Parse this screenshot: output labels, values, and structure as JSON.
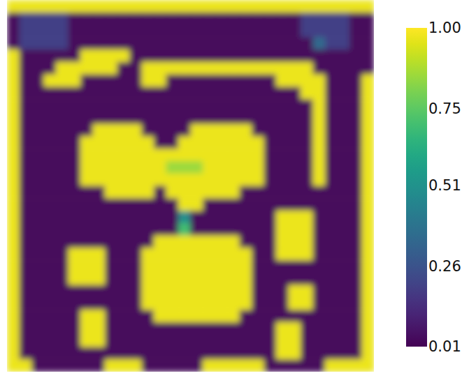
{
  "chart_data": {
    "type": "heatmap",
    "tick_labels": false,
    "zlim": [
      0.01,
      1.0
    ],
    "zticks": [
      0.01,
      0.26,
      0.51,
      0.75,
      {
        "value": 1.0,
        "label": "1.00"
      }
    ],
    "cells": [
      [
        0.97,
        0.97,
        0.97,
        0.97,
        0.97,
        0.97,
        0.97,
        0.97,
        0.97,
        0.97,
        0.97,
        0.97,
        0.97,
        0.97,
        0.97,
        0.97,
        0.97,
        0.97,
        0.97,
        0.97,
        0.97,
        0.97,
        0.97,
        0.97,
        0.97,
        0.97,
        0.97,
        0.97,
        0.97,
        0.97
      ],
      [
        0.03,
        0.2,
        0.2,
        0.2,
        0.2,
        0.03,
        0.03,
        0.03,
        0.03,
        0.03,
        0.03,
        0.03,
        0.03,
        0.03,
        0.03,
        0.03,
        0.03,
        0.03,
        0.03,
        0.03,
        0.03,
        0.03,
        0.03,
        0.03,
        0.2,
        0.2,
        0.2,
        0.2,
        0.03,
        0.03
      ],
      [
        0.03,
        0.2,
        0.2,
        0.2,
        0.2,
        0.03,
        0.03,
        0.03,
        0.03,
        0.03,
        0.03,
        0.03,
        0.03,
        0.03,
        0.03,
        0.03,
        0.03,
        0.03,
        0.03,
        0.03,
        0.03,
        0.03,
        0.03,
        0.03,
        0.2,
        0.2,
        0.2,
        0.2,
        0.03,
        0.03
      ],
      [
        0.03,
        0.2,
        0.2,
        0.2,
        0.2,
        0.03,
        0.03,
        0.03,
        0.03,
        0.03,
        0.03,
        0.03,
        0.03,
        0.03,
        0.03,
        0.03,
        0.03,
        0.03,
        0.03,
        0.03,
        0.03,
        0.03,
        0.03,
        0.03,
        0.03,
        0.35,
        0.2,
        0.2,
        0.03,
        0.03
      ],
      [
        0.97,
        0.03,
        0.03,
        0.03,
        0.03,
        0.03,
        0.97,
        0.97,
        0.97,
        0.97,
        0.03,
        0.03,
        0.03,
        0.03,
        0.03,
        0.03,
        0.03,
        0.03,
        0.03,
        0.03,
        0.03,
        0.03,
        0.03,
        0.03,
        0.03,
        0.03,
        0.03,
        0.03,
        0.03,
        0.03
      ],
      [
        0.97,
        0.03,
        0.03,
        0.03,
        0.97,
        0.97,
        0.97,
        0.97,
        0.97,
        0.03,
        0.03,
        0.97,
        0.97,
        0.97,
        0.97,
        0.97,
        0.97,
        0.97,
        0.97,
        0.97,
        0.97,
        0.97,
        0.97,
        0.97,
        0.97,
        0.03,
        0.03,
        0.03,
        0.03,
        0.03
      ],
      [
        0.97,
        0.03,
        0.03,
        0.97,
        0.97,
        0.97,
        0.03,
        0.03,
        0.03,
        0.03,
        0.03,
        0.97,
        0.97,
        0.03,
        0.03,
        0.03,
        0.03,
        0.03,
        0.03,
        0.03,
        0.03,
        0.03,
        0.97,
        0.97,
        0.97,
        0.97,
        0.03,
        0.03,
        0.03,
        0.97
      ],
      [
        0.97,
        0.03,
        0.03,
        0.03,
        0.03,
        0.03,
        0.03,
        0.03,
        0.03,
        0.03,
        0.03,
        0.03,
        0.03,
        0.03,
        0.03,
        0.03,
        0.03,
        0.03,
        0.03,
        0.03,
        0.03,
        0.03,
        0.03,
        0.03,
        0.97,
        0.97,
        0.03,
        0.03,
        0.03,
        0.97
      ],
      [
        0.97,
        0.03,
        0.03,
        0.03,
        0.03,
        0.03,
        0.03,
        0.03,
        0.03,
        0.03,
        0.03,
        0.03,
        0.03,
        0.03,
        0.03,
        0.03,
        0.03,
        0.03,
        0.03,
        0.03,
        0.03,
        0.03,
        0.03,
        0.03,
        0.03,
        0.97,
        0.03,
        0.03,
        0.03,
        0.97
      ],
      [
        0.97,
        0.03,
        0.03,
        0.03,
        0.03,
        0.03,
        0.03,
        0.03,
        0.03,
        0.03,
        0.03,
        0.03,
        0.03,
        0.03,
        0.03,
        0.03,
        0.03,
        0.03,
        0.03,
        0.03,
        0.03,
        0.03,
        0.03,
        0.03,
        0.03,
        0.97,
        0.03,
        0.03,
        0.03,
        0.97
      ],
      [
        0.97,
        0.03,
        0.03,
        0.03,
        0.03,
        0.03,
        0.03,
        0.97,
        0.97,
        0.97,
        0.97,
        0.03,
        0.03,
        0.03,
        0.03,
        0.97,
        0.97,
        0.97,
        0.97,
        0.97,
        0.03,
        0.03,
        0.03,
        0.03,
        0.03,
        0.97,
        0.03,
        0.03,
        0.03,
        0.97
      ],
      [
        0.97,
        0.03,
        0.03,
        0.03,
        0.03,
        0.03,
        0.97,
        0.97,
        0.97,
        0.97,
        0.97,
        0.97,
        0.03,
        0.03,
        0.97,
        0.97,
        0.97,
        0.97,
        0.97,
        0.97,
        0.97,
        0.03,
        0.03,
        0.03,
        0.03,
        0.97,
        0.03,
        0.03,
        0.03,
        0.97
      ],
      [
        0.97,
        0.03,
        0.03,
        0.03,
        0.03,
        0.03,
        0.97,
        0.97,
        0.97,
        0.97,
        0.97,
        0.97,
        0.97,
        0.97,
        0.97,
        0.97,
        0.97,
        0.97,
        0.97,
        0.97,
        0.97,
        0.03,
        0.03,
        0.03,
        0.03,
        0.97,
        0.03,
        0.03,
        0.03,
        0.97
      ],
      [
        0.97,
        0.03,
        0.03,
        0.03,
        0.03,
        0.03,
        0.97,
        0.97,
        0.97,
        0.97,
        0.97,
        0.97,
        0.97,
        0.85,
        0.85,
        0.85,
        0.97,
        0.97,
        0.97,
        0.97,
        0.97,
        0.03,
        0.03,
        0.03,
        0.03,
        0.97,
        0.03,
        0.03,
        0.03,
        0.97
      ],
      [
        0.97,
        0.03,
        0.03,
        0.03,
        0.03,
        0.03,
        0.97,
        0.97,
        0.97,
        0.97,
        0.97,
        0.97,
        0.97,
        0.97,
        0.97,
        0.97,
        0.97,
        0.97,
        0.97,
        0.97,
        0.97,
        0.03,
        0.03,
        0.03,
        0.03,
        0.97,
        0.03,
        0.03,
        0.03,
        0.97
      ],
      [
        0.97,
        0.03,
        0.03,
        0.03,
        0.03,
        0.03,
        0.03,
        0.03,
        0.97,
        0.97,
        0.97,
        0.97,
        0.03,
        0.97,
        0.97,
        0.97,
        0.97,
        0.97,
        0.97,
        0.03,
        0.03,
        0.03,
        0.03,
        0.03,
        0.03,
        0.03,
        0.03,
        0.03,
        0.03,
        0.97
      ],
      [
        0.97,
        0.03,
        0.03,
        0.03,
        0.03,
        0.03,
        0.03,
        0.03,
        0.03,
        0.03,
        0.03,
        0.03,
        0.03,
        0.03,
        0.97,
        0.97,
        0.03,
        0.03,
        0.03,
        0.03,
        0.03,
        0.03,
        0.03,
        0.03,
        0.03,
        0.03,
        0.03,
        0.03,
        0.03,
        0.97
      ],
      [
        0.97,
        0.03,
        0.03,
        0.03,
        0.03,
        0.03,
        0.03,
        0.03,
        0.03,
        0.03,
        0.03,
        0.03,
        0.03,
        0.03,
        0.5,
        0.03,
        0.03,
        0.03,
        0.03,
        0.03,
        0.03,
        0.03,
        0.97,
        0.97,
        0.97,
        0.03,
        0.03,
        0.03,
        0.03,
        0.97
      ],
      [
        0.97,
        0.03,
        0.03,
        0.03,
        0.03,
        0.03,
        0.03,
        0.03,
        0.03,
        0.03,
        0.03,
        0.03,
        0.03,
        0.03,
        0.7,
        0.03,
        0.03,
        0.03,
        0.03,
        0.03,
        0.03,
        0.03,
        0.97,
        0.97,
        0.97,
        0.03,
        0.03,
        0.03,
        0.03,
        0.97
      ],
      [
        0.97,
        0.03,
        0.03,
        0.03,
        0.03,
        0.03,
        0.03,
        0.03,
        0.03,
        0.03,
        0.03,
        0.03,
        0.97,
        0.97,
        0.97,
        0.97,
        0.97,
        0.97,
        0.97,
        0.03,
        0.03,
        0.03,
        0.97,
        0.97,
        0.97,
        0.03,
        0.03,
        0.03,
        0.03,
        0.97
      ],
      [
        0.97,
        0.03,
        0.03,
        0.03,
        0.03,
        0.97,
        0.97,
        0.97,
        0.03,
        0.03,
        0.03,
        0.97,
        0.97,
        0.97,
        0.97,
        0.97,
        0.97,
        0.97,
        0.97,
        0.97,
        0.03,
        0.03,
        0.97,
        0.97,
        0.97,
        0.03,
        0.03,
        0.03,
        0.03,
        0.97
      ],
      [
        0.97,
        0.03,
        0.03,
        0.03,
        0.03,
        0.97,
        0.97,
        0.97,
        0.03,
        0.03,
        0.03,
        0.97,
        0.97,
        0.97,
        0.97,
        0.97,
        0.97,
        0.97,
        0.97,
        0.97,
        0.03,
        0.03,
        0.03,
        0.03,
        0.03,
        0.03,
        0.03,
        0.03,
        0.03,
        0.97
      ],
      [
        0.97,
        0.03,
        0.03,
        0.03,
        0.03,
        0.97,
        0.97,
        0.97,
        0.03,
        0.03,
        0.03,
        0.97,
        0.97,
        0.97,
        0.97,
        0.97,
        0.97,
        0.97,
        0.97,
        0.97,
        0.03,
        0.03,
        0.03,
        0.03,
        0.03,
        0.03,
        0.03,
        0.03,
        0.03,
        0.97
      ],
      [
        0.97,
        0.03,
        0.03,
        0.03,
        0.03,
        0.03,
        0.03,
        0.03,
        0.03,
        0.03,
        0.03,
        0.97,
        0.97,
        0.97,
        0.97,
        0.97,
        0.97,
        0.97,
        0.97,
        0.97,
        0.03,
        0.03,
        0.03,
        0.97,
        0.97,
        0.03,
        0.03,
        0.03,
        0.03,
        0.97
      ],
      [
        0.97,
        0.03,
        0.03,
        0.03,
        0.03,
        0.03,
        0.03,
        0.03,
        0.03,
        0.03,
        0.03,
        0.97,
        0.97,
        0.97,
        0.97,
        0.97,
        0.97,
        0.97,
        0.97,
        0.97,
        0.03,
        0.03,
        0.03,
        0.97,
        0.97,
        0.03,
        0.03,
        0.03,
        0.03,
        0.97
      ],
      [
        0.97,
        0.03,
        0.03,
        0.03,
        0.03,
        0.03,
        0.97,
        0.97,
        0.03,
        0.03,
        0.03,
        0.03,
        0.97,
        0.97,
        0.97,
        0.97,
        0.97,
        0.97,
        0.97,
        0.03,
        0.03,
        0.03,
        0.03,
        0.03,
        0.03,
        0.03,
        0.03,
        0.03,
        0.03,
        0.97
      ],
      [
        0.97,
        0.03,
        0.03,
        0.03,
        0.03,
        0.03,
        0.97,
        0.97,
        0.03,
        0.03,
        0.03,
        0.03,
        0.03,
        0.03,
        0.03,
        0.03,
        0.03,
        0.03,
        0.03,
        0.03,
        0.03,
        0.03,
        0.97,
        0.97,
        0.03,
        0.03,
        0.03,
        0.03,
        0.03,
        0.97
      ],
      [
        0.97,
        0.03,
        0.03,
        0.03,
        0.03,
        0.03,
        0.97,
        0.97,
        0.03,
        0.03,
        0.03,
        0.03,
        0.03,
        0.03,
        0.03,
        0.03,
        0.03,
        0.03,
        0.03,
        0.03,
        0.03,
        0.03,
        0.97,
        0.97,
        0.03,
        0.03,
        0.03,
        0.03,
        0.03,
        0.97
      ],
      [
        0.97,
        0.03,
        0.03,
        0.03,
        0.03,
        0.03,
        0.03,
        0.03,
        0.03,
        0.03,
        0.03,
        0.03,
        0.03,
        0.03,
        0.03,
        0.03,
        0.03,
        0.03,
        0.03,
        0.03,
        0.03,
        0.03,
        0.97,
        0.97,
        0.03,
        0.03,
        0.03,
        0.03,
        0.03,
        0.97
      ],
      [
        0.97,
        0.97,
        0.03,
        0.03,
        0.03,
        0.03,
        0.03,
        0.03,
        0.97,
        0.97,
        0.97,
        0.03,
        0.03,
        0.03,
        0.03,
        0.03,
        0.97,
        0.97,
        0.97,
        0.97,
        0.97,
        0.03,
        0.03,
        0.03,
        0.03,
        0.03,
        0.97,
        0.97,
        0.97,
        0.97
      ]
    ]
  }
}
